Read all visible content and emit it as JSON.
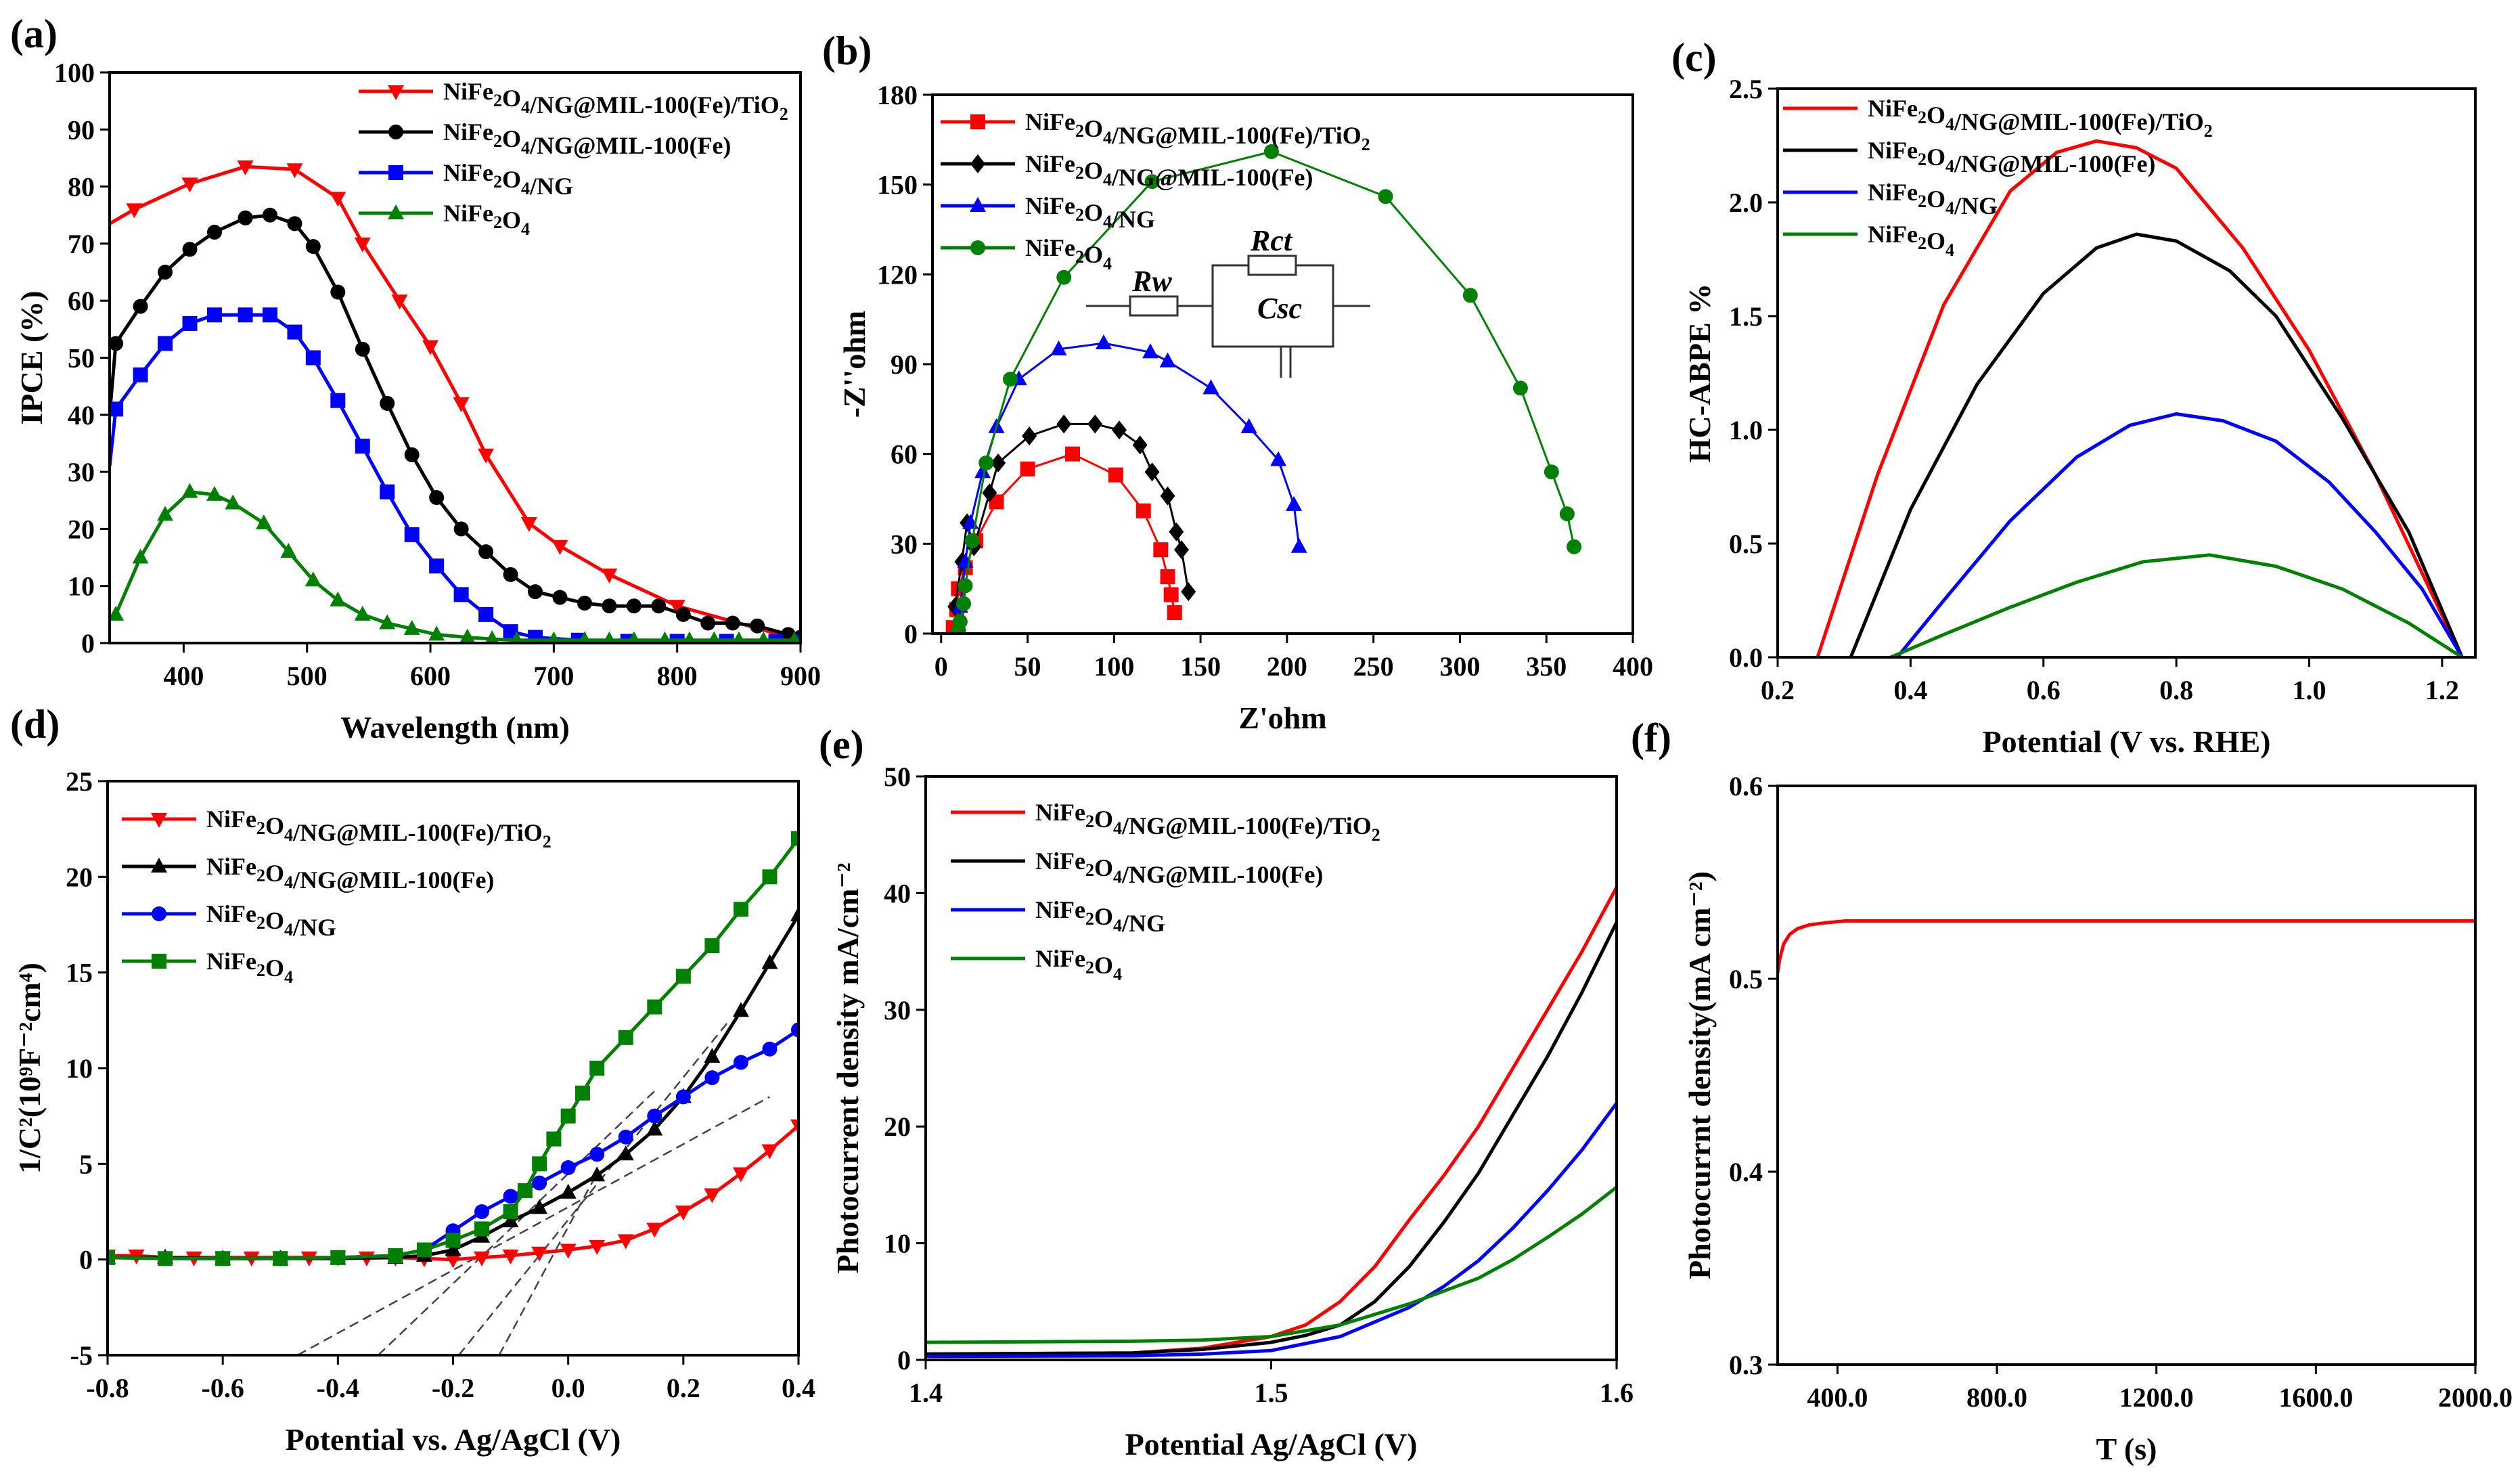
{
  "colors": {
    "red": "#ff0000",
    "black": "#000000",
    "blue": "#0000ff",
    "green": "#008000"
  },
  "chart_data": [
    {
      "id": "a",
      "panel_label": "(a)",
      "type": "line",
      "xlabel": "Wavelength (nm)",
      "ylabel": "IPCE (%)",
      "xlim": [
        340,
        900
      ],
      "ylim": [
        0,
        100
      ],
      "xticks": [
        400,
        500,
        600,
        700,
        800,
        900
      ],
      "yticks": [
        0,
        10,
        20,
        30,
        40,
        50,
        60,
        70,
        80,
        90,
        100
      ],
      "legend": "top-right",
      "series": [
        {
          "name": "NiFe2O4/NG@MIL-100(Fe)/TiO2",
          "color": "red",
          "marker": "tridown",
          "x": [
            340,
            360,
            405,
            450,
            490,
            525,
            545,
            575,
            600,
            625,
            645,
            680,
            705,
            745,
            800,
            900
          ],
          "y": [
            73.5,
            76,
            80.5,
            83.5,
            83,
            78,
            70,
            60,
            52,
            42,
            33,
            21,
            17,
            12,
            6.5,
            0.5
          ]
        },
        {
          "name": "NiFe2O4/NG@MIL-100(Fe)",
          "color": "black",
          "marker": "circle",
          "x": [
            340,
            345,
            365,
            385,
            405,
            425,
            450,
            470,
            490,
            505,
            525,
            545,
            565,
            585,
            605,
            625,
            645,
            665,
            685,
            705,
            725,
            745,
            765,
            785,
            805,
            825,
            845,
            865,
            890,
            900
          ],
          "y": [
            40,
            52.5,
            59,
            65,
            69,
            72,
            74.5,
            75,
            73.5,
            69.5,
            61.5,
            51.5,
            42,
            33,
            25.5,
            20,
            16,
            12,
            9,
            8,
            7,
            6.5,
            6.5,
            6.5,
            5,
            3.5,
            3.5,
            3,
            1.5,
            1
          ]
        },
        {
          "name": "NiFe2O4/NG",
          "color": "blue",
          "marker": "square",
          "x": [
            340,
            345,
            365,
            385,
            405,
            425,
            450,
            470,
            490,
            505,
            525,
            545,
            565,
            585,
            605,
            625,
            645,
            665,
            685,
            720,
            760,
            800,
            840,
            880,
            900
          ],
          "y": [
            31,
            41,
            47,
            52.5,
            56,
            57.5,
            57.5,
            57.5,
            54.5,
            50,
            42.5,
            34.5,
            26.5,
            19,
            13.5,
            8.5,
            5,
            2,
            1,
            0.5,
            0.3,
            0.3,
            0.3,
            0.3,
            0.3
          ]
        },
        {
          "name": "NiFe2O4",
          "color": "green",
          "marker": "triup",
          "x": [
            340,
            345,
            365,
            385,
            405,
            425,
            440,
            465,
            485,
            505,
            525,
            545,
            565,
            585,
            605,
            630,
            650,
            670,
            700,
            725,
            745,
            765,
            790,
            810,
            830,
            850,
            870,
            895
          ],
          "y": [
            4.5,
            5,
            15,
            22.5,
            26.5,
            26,
            24.5,
            21,
            16,
            11,
            7.5,
            5,
            3.5,
            2.5,
            1.5,
            1,
            0.7,
            0.5,
            0.5,
            0.5,
            0.5,
            0.5,
            0.5,
            0.5,
            0.5,
            0.5,
            0.5,
            0.5
          ]
        }
      ]
    },
    {
      "id": "b",
      "panel_label": "(b)",
      "type": "line",
      "xlabel": "Z'ohm",
      "ylabel": "-Z''ohm",
      "xlim": [
        -5,
        400
      ],
      "ylim": [
        0,
        180
      ],
      "xticks": [
        0,
        50,
        100,
        150,
        200,
        250,
        300,
        350,
        400
      ],
      "yticks": [
        0,
        30,
        60,
        90,
        120,
        150,
        180
      ],
      "legend": "top-left",
      "inset_labels": {
        "rw": "Rw",
        "rct": "Rct",
        "csc": "Csc"
      },
      "series": [
        {
          "name": "NiFe2O4/NG@MIL-100(Fe)/TiO2",
          "color": "red",
          "marker": "square",
          "x": [
            7,
            9,
            10,
            14,
            20,
            32,
            50,
            76,
            101,
            117,
            127,
            131,
            133,
            135
          ],
          "y": [
            2,
            8,
            15,
            22,
            31,
            44,
            55,
            60,
            53,
            41,
            28,
            19,
            13,
            7
          ]
        },
        {
          "name": "NiFe2O4/NG@MIL-100(Fe)",
          "color": "black",
          "marker": "diamond",
          "x": [
            8,
            12,
            15,
            19,
            28,
            33,
            51,
            71,
            89,
            103,
            115,
            122,
            131,
            136,
            139,
            143
          ],
          "y": [
            9,
            24,
            37,
            29,
            47,
            57,
            66,
            70,
            70,
            68,
            63,
            54,
            46,
            34,
            28,
            14
          ]
        },
        {
          "name": "NiFe2O4/NG",
          "color": "blue",
          "marker": "triup",
          "x": [
            10,
            11,
            14,
            17,
            24,
            32,
            45,
            68,
            94,
            121,
            131,
            156,
            178,
            195,
            204,
            207
          ],
          "y": [
            3,
            9,
            24,
            37,
            54,
            69,
            85,
            95,
            97,
            94,
            91,
            82,
            69,
            58,
            43,
            29
          ]
        },
        {
          "name": "NiFe2O4",
          "color": "green",
          "marker": "circle",
          "x": [
            10,
            11,
            13,
            14,
            18,
            26,
            40,
            71,
            122,
            191,
            257,
            306,
            335,
            353,
            362,
            366
          ],
          "y": [
            1,
            4,
            10,
            16,
            31,
            57,
            85,
            119,
            151,
            161,
            146,
            113,
            82,
            54,
            40,
            29
          ]
        }
      ]
    },
    {
      "id": "c",
      "panel_label": "(c)",
      "type": "line",
      "xlabel": "Potential (V vs. RHE)",
      "ylabel": "HC-ABPE %",
      "xlim": [
        0.2,
        1.25
      ],
      "ylim": [
        0,
        2.5
      ],
      "xticks": [
        0.2,
        0.4,
        0.6,
        0.8,
        1.0,
        1.2
      ],
      "yticks": [
        0.0,
        0.5,
        1.0,
        1.5,
        2.0,
        2.5
      ],
      "decimals": 1,
      "legend": "top-left",
      "series": [
        {
          "name": "NiFe2O4/NG@MIL-100(Fe)/TiO2",
          "color": "red",
          "x": [
            0.26,
            0.35,
            0.45,
            0.55,
            0.62,
            0.68,
            0.74,
            0.8,
            0.9,
            1.0,
            1.1,
            1.23
          ],
          "y": [
            0,
            0.8,
            1.55,
            2.05,
            2.22,
            2.27,
            2.24,
            2.15,
            1.8,
            1.35,
            0.8,
            0
          ]
        },
        {
          "name": "NiFe2O4/NG@MIL-100(Fe)",
          "color": "black",
          "x": [
            0.31,
            0.4,
            0.5,
            0.6,
            0.68,
            0.74,
            0.8,
            0.88,
            0.95,
            1.05,
            1.15,
            1.23
          ],
          "y": [
            0,
            0.65,
            1.2,
            1.6,
            1.8,
            1.86,
            1.83,
            1.7,
            1.5,
            1.05,
            0.55,
            0
          ]
        },
        {
          "name": "NiFe2O4/NG",
          "color": "blue",
          "x": [
            0.38,
            0.45,
            0.55,
            0.65,
            0.73,
            0.8,
            0.87,
            0.95,
            1.03,
            1.1,
            1.17,
            1.23
          ],
          "y": [
            0,
            0.25,
            0.6,
            0.88,
            1.02,
            1.07,
            1.04,
            0.95,
            0.77,
            0.55,
            0.3,
            0
          ]
        },
        {
          "name": "NiFe2O4",
          "color": "green",
          "x": [
            0.37,
            0.45,
            0.55,
            0.65,
            0.75,
            0.85,
            0.95,
            1.05,
            1.15,
            1.23
          ],
          "y": [
            0,
            0.1,
            0.22,
            0.33,
            0.42,
            0.45,
            0.4,
            0.3,
            0.15,
            0
          ]
        }
      ]
    },
    {
      "id": "d",
      "panel_label": "(d)",
      "type": "line",
      "xlabel": "Potential vs. Ag/AgCl (V)",
      "ylabel": "1/C²(10⁹F⁻²cm⁴)",
      "xlim": [
        -0.8,
        0.4
      ],
      "ylim": [
        -5,
        25
      ],
      "xticks": [
        -0.8,
        -0.6,
        -0.4,
        -0.2,
        0.0,
        0.2,
        0.4
      ],
      "yticks": [
        -5,
        0,
        5,
        10,
        15,
        20,
        25
      ],
      "decimals_x": 1,
      "legend": "top-left",
      "series": [
        {
          "name": "NiFe2O4/NG@MIL-100(Fe)/TiO2",
          "color": "red",
          "marker": "tridown",
          "x": [
            -0.8,
            -0.75,
            -0.7,
            -0.65,
            -0.6,
            -0.55,
            -0.5,
            -0.45,
            -0.4,
            -0.35,
            -0.3,
            -0.25,
            -0.2,
            -0.15,
            -0.1,
            -0.05,
            0,
            0.05,
            0.1,
            0.15,
            0.2,
            0.25,
            0.3,
            0.35,
            0.4
          ],
          "y": [
            0.2,
            0.2,
            0.1,
            0.1,
            0.1,
            0.1,
            0.1,
            0.1,
            0.1,
            0.1,
            0.1,
            0.05,
            0,
            0.1,
            0.2,
            0.35,
            0.5,
            0.7,
            1,
            1.6,
            2.5,
            3.4,
            4.5,
            5.7,
            7
          ]
        },
        {
          "name": "NiFe2O4/NG@MIL-100(Fe)",
          "color": "black",
          "marker": "triup",
          "x": [
            -0.8,
            -0.7,
            -0.6,
            -0.5,
            -0.4,
            -0.3,
            -0.25,
            -0.2,
            -0.15,
            -0.1,
            -0.05,
            0,
            0.05,
            0.1,
            0.15,
            0.2,
            0.25,
            0.3,
            0.35,
            0.4
          ],
          "y": [
            0.1,
            0.1,
            0.05,
            0.05,
            0.05,
            0.1,
            0.2,
            0.5,
            1.2,
            2,
            2.7,
            3.5,
            4.4,
            5.5,
            6.8,
            8.5,
            10.6,
            13,
            15.5,
            18
          ]
        },
        {
          "name": "NiFe2O4/NG",
          "color": "blue",
          "marker": "circle",
          "x": [
            -0.8,
            -0.7,
            -0.6,
            -0.5,
            -0.4,
            -0.3,
            -0.25,
            -0.2,
            -0.15,
            -0.1,
            -0.05,
            0,
            0.05,
            0.1,
            0.15,
            0.2,
            0.25,
            0.3,
            0.35,
            0.4
          ],
          "y": [
            0.1,
            0.05,
            0.05,
            0.05,
            0.1,
            0.2,
            0.5,
            1.5,
            2.5,
            3.3,
            4,
            4.8,
            5.5,
            6.4,
            7.5,
            8.5,
            9.5,
            10.3,
            11,
            12
          ]
        },
        {
          "name": "NiFe2O4",
          "color": "green",
          "marker": "square",
          "x": [
            -0.8,
            -0.7,
            -0.6,
            -0.5,
            -0.4,
            -0.3,
            -0.25,
            -0.2,
            -0.15,
            -0.1,
            -0.075,
            -0.05,
            -0.025,
            0,
            0.025,
            0.05,
            0.1,
            0.15,
            0.2,
            0.25,
            0.3,
            0.35,
            0.4
          ],
          "y": [
            0.1,
            0.05,
            0.05,
            0.05,
            0.1,
            0.2,
            0.5,
            1,
            1.6,
            2.5,
            3.6,
            5,
            6.3,
            7.5,
            8.7,
            10,
            11.6,
            13.2,
            14.8,
            16.4,
            18.3,
            20,
            22
          ]
        }
      ],
      "fit_lines": [
        {
          "x": [
            -0.47,
            0.35
          ],
          "y": [
            -5,
            8.5
          ]
        },
        {
          "x": [
            -0.33,
            0.15
          ],
          "y": [
            -5,
            8.8
          ]
        },
        {
          "x": [
            -0.19,
            0.28
          ],
          "y": [
            -5,
            12.5
          ]
        },
        {
          "x": [
            -0.12,
            0.05
          ],
          "y": [
            -5,
            4.5
          ]
        }
      ]
    },
    {
      "id": "e",
      "panel_label": "(e)",
      "type": "line",
      "xlabel": "Potential Ag/AgCl (V)",
      "ylabel": "Photocurrent density mA/cm⁻²",
      "xlim": [
        1.4,
        1.6
      ],
      "ylim": [
        0,
        50
      ],
      "xticks": [
        1.4,
        1.5,
        1.6
      ],
      "yticks": [
        0,
        10,
        20,
        30,
        40,
        50
      ],
      "decimals_x": 1,
      "legend": "top-left",
      "series": [
        {
          "name": "NiFe2O4/NG@MIL-100(Fe)/TiO2",
          "color": "red",
          "x": [
            1.4,
            1.46,
            1.48,
            1.5,
            1.51,
            1.52,
            1.53,
            1.54,
            1.55,
            1.56,
            1.57,
            1.58,
            1.59,
            1.6
          ],
          "y": [
            0.5,
            0.6,
            1,
            2,
            3,
            5,
            8,
            12,
            15.8,
            20,
            25,
            30,
            35,
            40.5
          ]
        },
        {
          "name": "NiFe2O4/NG@MIL-100(Fe)",
          "color": "black",
          "x": [
            1.4,
            1.46,
            1.48,
            1.5,
            1.51,
            1.52,
            1.53,
            1.54,
            1.55,
            1.56,
            1.57,
            1.58,
            1.59,
            1.6
          ],
          "y": [
            0.5,
            0.6,
            0.9,
            1.5,
            2.1,
            3,
            5,
            8,
            11.8,
            16,
            21,
            26,
            31.5,
            37.5
          ]
        },
        {
          "name": "NiFe2O4/NG",
          "color": "blue",
          "x": [
            1.4,
            1.46,
            1.48,
            1.5,
            1.52,
            1.54,
            1.55,
            1.56,
            1.57,
            1.58,
            1.59,
            1.6
          ],
          "y": [
            0.3,
            0.35,
            0.5,
            0.8,
            2,
            4.5,
            6.3,
            8.5,
            11.3,
            14.5,
            18,
            22
          ]
        },
        {
          "name": "NiFe2O4",
          "color": "green",
          "x": [
            1.4,
            1.46,
            1.48,
            1.5,
            1.52,
            1.54,
            1.56,
            1.57,
            1.58,
            1.59,
            1.6
          ],
          "y": [
            1.5,
            1.6,
            1.7,
            2,
            3,
            4.8,
            7,
            8.6,
            10.5,
            12.5,
            14.8
          ]
        }
      ]
    },
    {
      "id": "f",
      "panel_label": "(f)",
      "type": "line",
      "xlabel": "T (s)",
      "ylabel": "Photocurrnt density(mA cm⁻²)",
      "xlim": [
        250,
        2000
      ],
      "ylim": [
        0.3,
        0.6
      ],
      "xticks": [
        400,
        800,
        1200,
        1600,
        2000
      ],
      "yticks": [
        0.3,
        0.4,
        0.5,
        0.6
      ],
      "decimals": 1,
      "legend": "none",
      "series": [
        {
          "name": "photocurrent",
          "color": "red",
          "x": [
            250,
            255,
            265,
            280,
            300,
            330,
            370,
            420,
            600,
            1000,
            1500,
            2000
          ],
          "y": [
            0.503,
            0.51,
            0.518,
            0.523,
            0.526,
            0.528,
            0.529,
            0.53,
            0.53,
            0.53,
            0.53,
            0.53
          ]
        }
      ]
    }
  ]
}
